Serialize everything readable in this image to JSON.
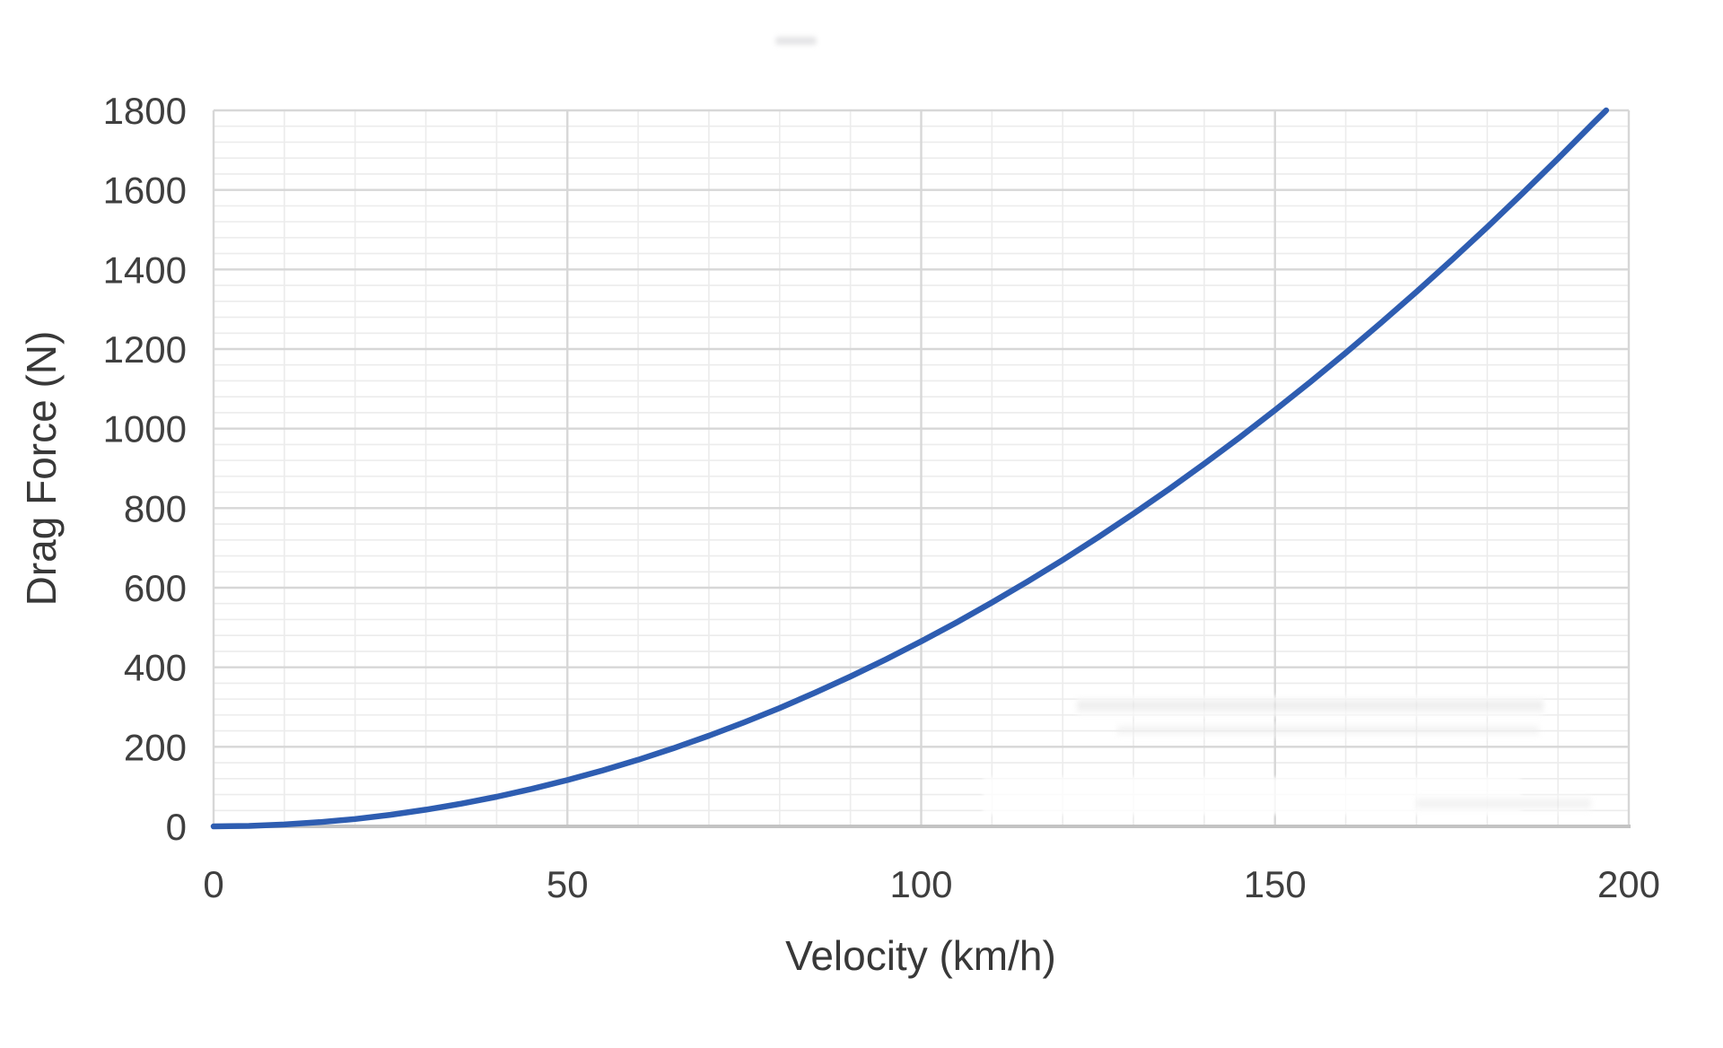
{
  "chart_data": {
    "type": "line",
    "title": "",
    "xlabel": "Velocity (km/h)",
    "ylabel": "Drag Force (N)",
    "xlim": [
      0,
      200
    ],
    "ylim": [
      0,
      1800
    ],
    "x_ticks": [
      0,
      50,
      100,
      150,
      200
    ],
    "y_ticks": [
      0,
      200,
      400,
      600,
      800,
      1000,
      1200,
      1400,
      1600,
      1800
    ],
    "x_minor_unit": 10,
    "y_minor_unit": 40,
    "grid": "major and minor gridlines on, both axes",
    "legend": "none",
    "series": [
      {
        "name": "Drag Force",
        "color": "#2e5db1",
        "x": [
          0,
          5,
          10,
          15,
          20,
          25,
          30,
          35,
          40,
          45,
          50,
          55,
          60,
          65,
          70,
          75,
          80,
          85,
          90,
          95,
          100,
          105,
          110,
          115,
          120,
          125,
          130,
          135,
          140,
          145,
          150,
          155,
          160,
          165,
          170,
          175,
          180,
          185,
          190,
          195,
          196.8
        ],
        "y": [
          0,
          1.2,
          4.7,
          10.5,
          18.6,
          29.1,
          41.9,
          57.0,
          74.4,
          94.2,
          116.3,
          140.7,
          167.4,
          196.5,
          227.9,
          261.6,
          297.6,
          336.0,
          376.7,
          419.7,
          465.0,
          512.7,
          562.7,
          615.0,
          669.6,
          726.6,
          785.9,
          847.5,
          911.4,
          977.7,
          1046.3,
          1117.2,
          1190.4,
          1266.0,
          1343.9,
          1424.1,
          1506.6,
          1591.5,
          1678.7,
          1768.2,
          1800
        ]
      }
    ]
  },
  "colors": {
    "curve": "#2e5db1",
    "grid_major": "#d7d7d7",
    "grid_minor": "#ececec",
    "axis_line": "#c3c3c3",
    "tick_text": "#3f3f3f",
    "title_text": "#383838",
    "background": "#ffffff"
  }
}
